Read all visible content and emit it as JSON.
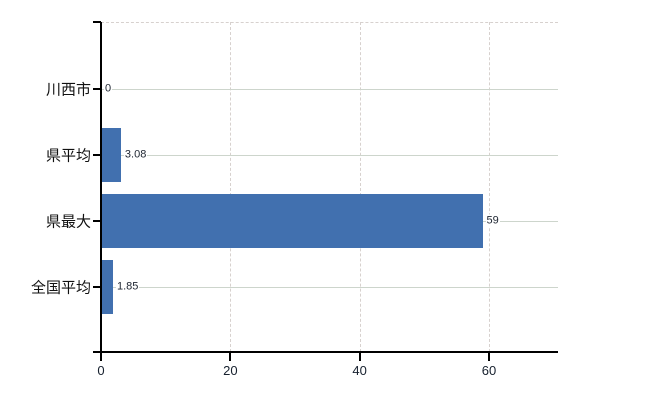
{
  "chart_data": {
    "type": "bar",
    "orientation": "horizontal",
    "title": "",
    "categories": [
      "川西市",
      "県平均",
      "県最大",
      "全国平均"
    ],
    "values": [
      0,
      3.08,
      59,
      1.85
    ],
    "value_labels": [
      "0",
      "3.08",
      "59",
      "1.85"
    ],
    "x_ticks": [
      0,
      20,
      40,
      60
    ],
    "x_tick_labels": [
      "0",
      "20",
      "40",
      "60"
    ],
    "xlim": [
      0,
      70.7
    ],
    "grid": true,
    "legend_position": "none",
    "colors": {
      "bar": "#4170af",
      "axis": "#000000",
      "horizontal_gridline": "#cdd5cc",
      "vertical_gridline": "#d7d1ce",
      "text": "#111111",
      "background": "#ffffff"
    }
  }
}
